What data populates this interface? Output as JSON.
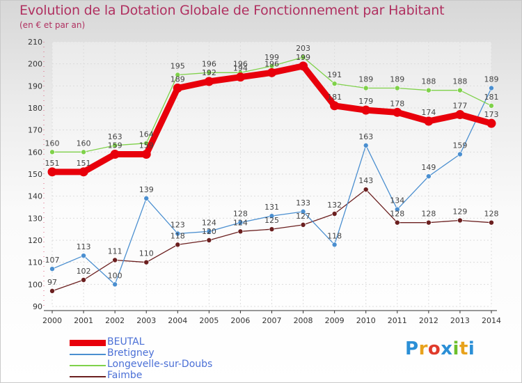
{
  "title": "Evolution de la Dotation Globale de Fonctionnement par Habitant",
  "subtitle": "(en € et par an)",
  "logo_text": "Proxiti",
  "colors": {
    "title": "#b03060",
    "legend_text": "#4a6fd6",
    "axis_text": "#333333"
  },
  "chart_data": {
    "type": "line",
    "x": [
      2000,
      2001,
      2002,
      2003,
      2004,
      2005,
      2006,
      2007,
      2008,
      2009,
      2010,
      2011,
      2012,
      2013,
      2014
    ],
    "ylim": [
      90,
      210
    ],
    "yticks": [
      90,
      100,
      110,
      120,
      130,
      140,
      150,
      160,
      170,
      180,
      190,
      200,
      210
    ],
    "grid": true,
    "legend_position": "bottom-left",
    "series": [
      {
        "name": "BEUTAL",
        "color": "#e8000b",
        "width": 9,
        "values": [
          151,
          151,
          159,
          159,
          189,
          192,
          194,
          196,
          199,
          181,
          179,
          178,
          174,
          177,
          173
        ]
      },
      {
        "name": "Bretigney",
        "color": "#4b8fd0",
        "width": 1.3,
        "values": [
          107,
          113,
          100,
          139,
          123,
          124,
          128,
          131,
          133,
          118,
          163,
          134,
          149,
          159,
          189
        ]
      },
      {
        "name": "Longevelle-sur-Doubs",
        "color": "#7fd14a",
        "width": 1.3,
        "values": [
          160,
          160,
          163,
          164,
          195,
          196,
          196,
          199,
          203,
          191,
          189,
          189,
          188,
          188,
          181
        ]
      },
      {
        "name": "Faimbe",
        "color": "#6b1f1f",
        "width": 1.3,
        "values": [
          97,
          102,
          111,
          110,
          118,
          120,
          124,
          125,
          127,
          132,
          143,
          128,
          128,
          129,
          128
        ]
      }
    ]
  }
}
